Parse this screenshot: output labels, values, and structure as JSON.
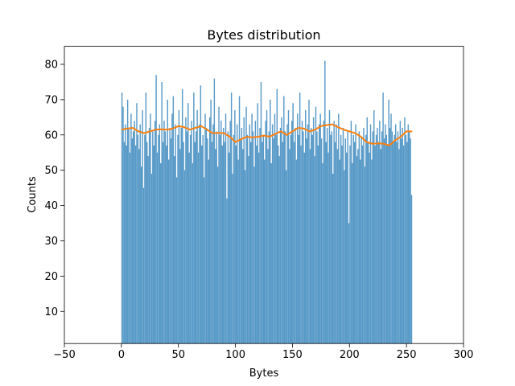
{
  "chart_data": {
    "type": "histogram",
    "title": "Bytes distribution",
    "x_label": "Bytes",
    "y_label": "Counts",
    "bins": [
      0,
      1,
      2,
      3,
      4,
      5,
      6,
      7,
      8,
      9,
      10,
      11,
      12,
      13,
      14,
      15,
      16,
      17,
      18,
      19,
      20,
      21,
      22,
      23,
      24,
      25,
      26,
      27,
      28,
      29,
      30,
      31,
      32,
      33,
      34,
      35,
      36,
      37,
      38,
      39,
      40,
      41,
      42,
      43,
      44,
      45,
      46,
      47,
      48,
      49,
      50,
      51,
      52,
      53,
      54,
      55,
      56,
      57,
      58,
      59,
      60,
      61,
      62,
      63,
      64,
      65,
      66,
      67,
      68,
      69,
      70,
      71,
      72,
      73,
      74,
      75,
      76,
      77,
      78,
      79,
      80,
      81,
      82,
      83,
      84,
      85,
      86,
      87,
      88,
      89,
      90,
      91,
      92,
      93,
      94,
      95,
      96,
      97,
      98,
      99,
      100,
      101,
      102,
      103,
      104,
      105,
      106,
      107,
      108,
      109,
      110,
      111,
      112,
      113,
      114,
      115,
      116,
      117,
      118,
      119,
      120,
      121,
      122,
      123,
      124,
      125,
      126,
      127,
      128,
      129,
      130,
      131,
      132,
      133,
      134,
      135,
      136,
      137,
      138,
      139,
      140,
      141,
      142,
      143,
      144,
      145,
      146,
      147,
      148,
      149,
      150,
      151,
      152,
      153,
      154,
      155,
      156,
      157,
      158,
      159,
      160,
      161,
      162,
      163,
      164,
      165,
      166,
      167,
      168,
      169,
      170,
      171,
      172,
      173,
      174,
      175,
      176,
      177,
      178,
      179,
      180,
      181,
      182,
      183,
      184,
      185,
      186,
      187,
      188,
      189,
      190,
      191,
      192,
      193,
      194,
      195,
      196,
      197,
      198,
      199,
      200,
      201,
      202,
      203,
      204,
      205,
      206,
      207,
      208,
      209,
      210,
      211,
      212,
      213,
      214,
      215,
      216,
      217,
      218,
      219,
      220,
      221,
      222,
      223,
      224,
      225,
      226,
      227,
      228,
      229,
      230,
      231,
      232,
      233,
      234,
      235,
      236,
      237,
      238,
      239,
      240,
      241,
      242,
      243,
      244,
      245,
      246,
      247,
      248,
      249,
      250,
      251,
      252,
      253,
      254,
      255
    ],
    "counts": [
      72,
      68,
      58,
      63,
      57,
      70,
      62,
      55,
      66,
      59,
      61,
      64,
      57,
      69,
      60,
      56,
      63,
      51,
      67,
      45,
      60,
      72,
      58,
      54,
      62,
      66,
      49,
      61,
      57,
      64,
      77,
      55,
      60,
      63,
      52,
      75,
      58,
      64,
      61,
      57,
      70,
      53,
      62,
      59,
      66,
      71,
      54,
      63,
      48,
      60,
      67,
      56,
      62,
      73,
      58,
      50,
      65,
      61,
      69,
      55,
      60,
      64,
      52,
      72,
      58,
      61,
      67,
      55,
      63,
      74,
      57,
      60,
      48,
      66,
      62,
      59,
      53,
      65,
      70,
      58,
      63,
      76,
      56,
      61,
      51,
      68,
      60,
      64,
      57,
      62,
      58,
      66,
      42,
      61,
      55,
      64,
      72,
      49,
      60,
      67,
      57,
      63,
      53,
      71,
      59,
      62,
      56,
      65,
      50,
      68,
      60,
      54,
      63,
      58,
      66,
      61,
      51,
      64,
      57,
      69,
      55,
      62,
      75,
      58,
      60,
      53,
      64,
      67,
      56,
      61,
      70,
      52,
      63,
      59,
      66,
      60,
      73,
      57,
      54,
      62,
      65,
      58,
      71,
      61,
      50,
      63,
      67,
      56,
      60,
      64,
      69,
      58,
      62,
      53,
      66,
      60,
      72,
      57,
      64,
      61,
      55,
      67,
      59,
      63,
      70,
      56,
      62,
      60,
      65,
      54,
      68,
      61,
      57,
      63,
      66,
      59,
      52,
      64,
      81,
      58,
      62,
      55,
      67,
      60,
      61,
      49,
      64,
      58,
      63,
      56,
      66,
      53,
      60,
      57,
      62,
      50,
      59,
      55,
      61,
      35,
      57,
      64,
      52,
      60,
      58,
      63,
      54,
      56,
      61,
      53,
      59,
      57,
      62,
      51,
      60,
      65,
      58,
      55,
      63,
      53,
      61,
      67,
      57,
      60,
      62,
      58,
      64,
      56,
      61,
      72,
      59,
      63,
      60,
      57,
      70,
      62,
      66,
      61,
      58,
      60,
      63,
      58,
      61,
      56,
      64,
      59,
      62,
      57,
      65,
      60,
      58,
      63,
      61,
      59,
      43
    ],
    "bar_color": "#5799c7",
    "line": {
      "color": "#ff7f0e",
      "x": [
        0,
        5,
        10,
        15,
        20,
        25,
        30,
        35,
        40,
        45,
        50,
        55,
        60,
        65,
        70,
        75,
        80,
        85,
        90,
        95,
        100,
        105,
        110,
        115,
        120,
        125,
        130,
        135,
        140,
        145,
        150,
        155,
        160,
        165,
        170,
        175,
        180,
        185,
        190,
        195,
        200,
        205,
        210,
        215,
        220,
        225,
        230,
        235,
        240,
        245,
        250,
        255
      ],
      "values": [
        61.5,
        61.8,
        62,
        61,
        60.5,
        61,
        61.5,
        61.6,
        61.5,
        61.8,
        62.5,
        62.2,
        61.5,
        62,
        62.5,
        61.5,
        60.5,
        60.6,
        60.5,
        59.5,
        58,
        58.8,
        59.5,
        59.3,
        59.5,
        59.8,
        59.5,
        60.3,
        61,
        60,
        61,
        62,
        61.8,
        61,
        61.5,
        62.5,
        62.8,
        63,
        62.2,
        61.5,
        61,
        60.5,
        59.5,
        58,
        57.5,
        57.6,
        57.5,
        57,
        58.5,
        59.5,
        61,
        61
      ]
    },
    "xlim": [
      -50,
      300
    ],
    "ylim": [
      0.9,
      85.1
    ],
    "xticks": [
      {
        "value": -50,
        "label": "−50"
      },
      0,
      50,
      100,
      150,
      200,
      250,
      300
    ],
    "yticks": [
      10,
      20,
      30,
      40,
      50,
      60,
      70,
      80
    ]
  }
}
